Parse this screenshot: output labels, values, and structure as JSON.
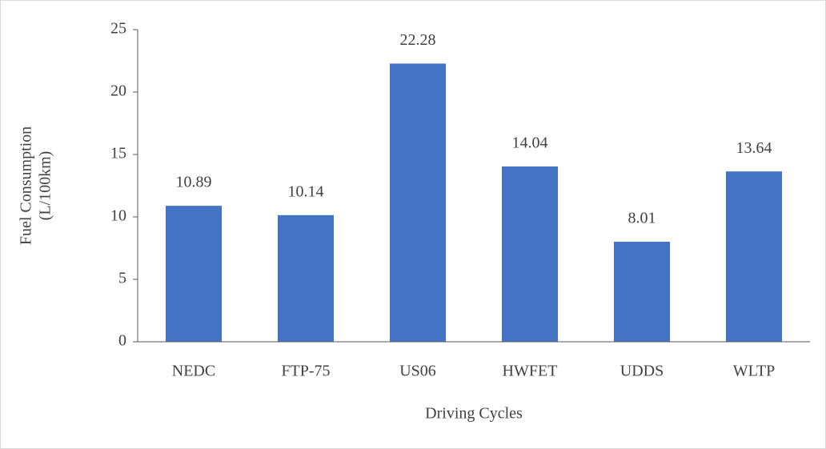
{
  "chart_data": {
    "type": "bar",
    "xlabel": "Driving Cycles",
    "ylabel": [
      "Fuel Consumption",
      "(L/100km)"
    ],
    "categories": [
      "NEDC",
      "FTP-75",
      "US06",
      "HWFET",
      "UDDS",
      "WLTP"
    ],
    "values": [
      10.89,
      10.14,
      22.28,
      14.04,
      8.01,
      13.64
    ],
    "color": "#4472c4",
    "ylim": [
      0,
      25
    ],
    "yticks": [
      0,
      5,
      10,
      15,
      20,
      25
    ],
    "grid": false
  }
}
